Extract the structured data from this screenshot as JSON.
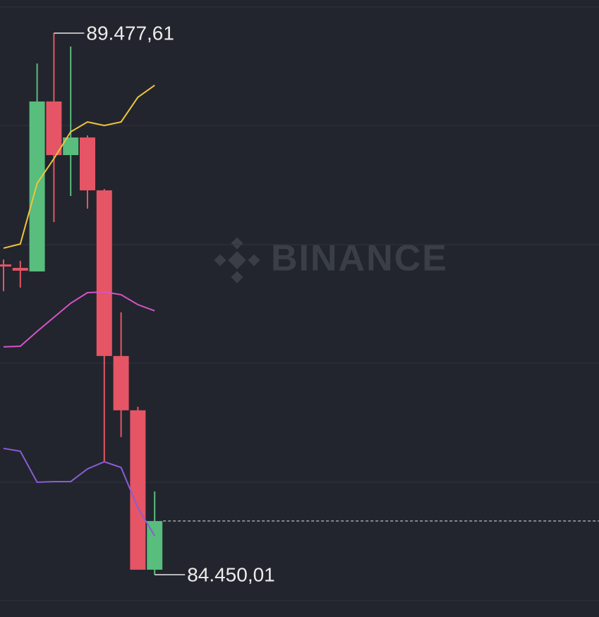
{
  "chart_data": {
    "type": "candlestick",
    "watermark": "BINANCE",
    "ylim": [
      84057,
      89785
    ],
    "gridlines": [
      89720,
      88620,
      87514,
      86414,
      85308,
      84208
    ],
    "up_color": "#58bd7d",
    "down_color": "#e55565",
    "open": [
      87330,
      87298,
      87265,
      88843,
      88345,
      88509,
      88018,
      86480,
      85976,
      84496
    ],
    "close": [
      87311,
      87272,
      88843,
      88345,
      88509,
      88018,
      86480,
      85976,
      84496,
      84948
    ],
    "high": [
      87376,
      87363,
      89196,
      89477.61,
      89353,
      88528,
      88031,
      86885,
      86008,
      85223
    ],
    "low": [
      87082,
      87115,
      87265,
      87723,
      87965,
      87848,
      85498,
      85727,
      84496,
      84450.01
    ],
    "series": [
      {
        "color": "#f0c53c",
        "values": [
          87481,
          87520,
          88083,
          88312,
          88561,
          88653,
          88620,
          88653,
          88882,
          88993
        ]
      },
      {
        "color": "#d653c9",
        "values": [
          86565,
          86571,
          86708,
          86839,
          86970,
          87068,
          87075,
          87049,
          86957,
          86899
        ]
      },
      {
        "color": "#8a5cd6",
        "values": [
          85622,
          85596,
          85308,
          85314,
          85314,
          85432,
          85498,
          85445,
          85072,
          84810
        ]
      }
    ],
    "annotations": [
      {
        "value": 89477.61,
        "label": "89.477,61"
      },
      {
        "value": 84450.01,
        "label": "84.450,01"
      }
    ]
  }
}
